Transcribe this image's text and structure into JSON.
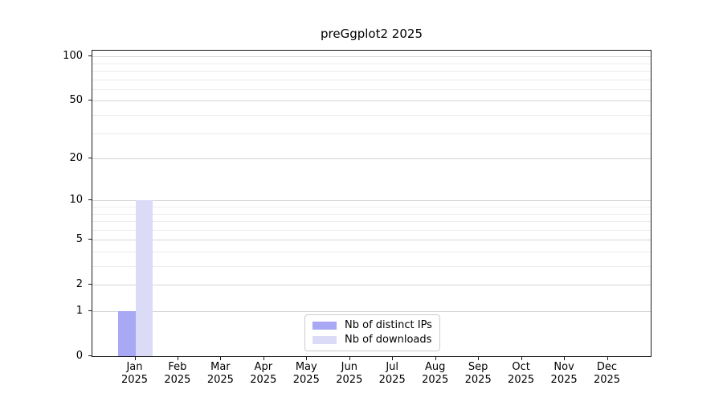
{
  "chart_data": {
    "type": "bar",
    "title": "preGgplot2 2025",
    "x": [
      {
        "month": "Jan",
        "year": "2025"
      },
      {
        "month": "Feb",
        "year": "2025"
      },
      {
        "month": "Mar",
        "year": "2025"
      },
      {
        "month": "Apr",
        "year": "2025"
      },
      {
        "month": "May",
        "year": "2025"
      },
      {
        "month": "Jun",
        "year": "2025"
      },
      {
        "month": "Jul",
        "year": "2025"
      },
      {
        "month": "Aug",
        "year": "2025"
      },
      {
        "month": "Sep",
        "year": "2025"
      },
      {
        "month": "Oct",
        "year": "2025"
      },
      {
        "month": "Nov",
        "year": "2025"
      },
      {
        "month": "Dec",
        "year": "2025"
      }
    ],
    "series": [
      {
        "name": "Nb of distinct IPs",
        "color": "#a8a8f5",
        "values": [
          1,
          0,
          0,
          0,
          0,
          0,
          0,
          0,
          0,
          0,
          0,
          0
        ]
      },
      {
        "name": "Nb of downloads",
        "color": "#dbdbf8",
        "values": [
          10,
          0,
          0,
          0,
          0,
          0,
          0,
          0,
          0,
          0,
          0,
          0
        ]
      }
    ],
    "yscale": "log1p",
    "ylim": [
      0,
      111
    ],
    "y_ticks": [
      {
        "value": 100,
        "label": "100"
      },
      {
        "value": 50,
        "label": "50"
      },
      {
        "value": 20,
        "label": "20"
      },
      {
        "value": 10,
        "label": "10"
      },
      {
        "value": 5,
        "label": "5"
      },
      {
        "value": 2,
        "label": "2"
      },
      {
        "value": 1,
        "label": "1"
      },
      {
        "value": 0,
        "label": "0"
      }
    ],
    "y_minor_gridlines": [
      3,
      4,
      6,
      7,
      8,
      9,
      30,
      40,
      60,
      70,
      80,
      90
    ],
    "grid": true,
    "legend_position": "lower center",
    "xlabel": "",
    "ylabel": ""
  }
}
